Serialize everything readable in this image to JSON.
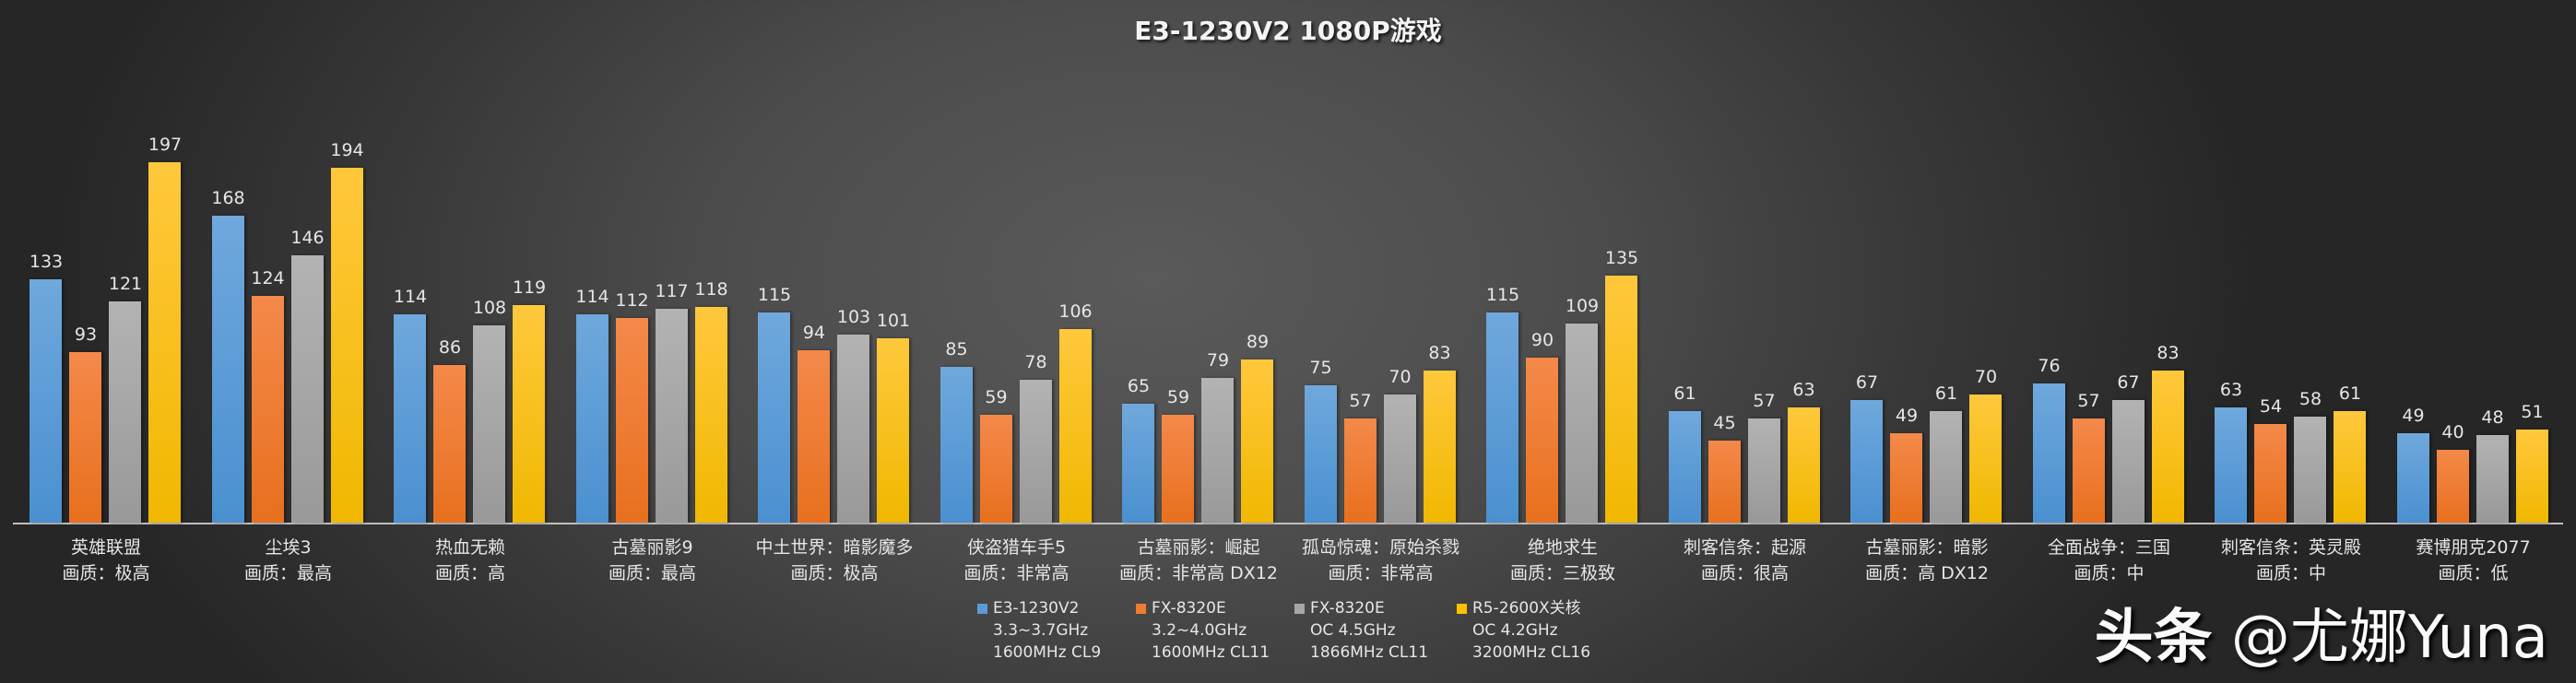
{
  "chart_data": {
    "type": "bar",
    "title": "E3-1230V2  1080P游戏",
    "xlabel": "",
    "ylabel": "",
    "ylim": [
      0,
      200
    ],
    "grid": false,
    "legend_position": "bottom",
    "categories": [
      {
        "game": "英雄联盟",
        "quality": "画质：极高"
      },
      {
        "game": "尘埃3",
        "quality": "画质：最高"
      },
      {
        "game": "热血无赖",
        "quality": "画质：高"
      },
      {
        "game": "古墓丽影9",
        "quality": "画质：最高"
      },
      {
        "game": "中土世界：暗影魔多",
        "quality": "画质：极高"
      },
      {
        "game": "侠盗猎车手5",
        "quality": "画质：非常高"
      },
      {
        "game": "古墓丽影：崛起",
        "quality": "画质：非常高 DX12"
      },
      {
        "game": "孤岛惊魂：原始杀戮",
        "quality": "画质：非常高"
      },
      {
        "game": "绝地求生",
        "quality": "画质：三极致"
      },
      {
        "game": "刺客信条：起源",
        "quality": "画质：很高"
      },
      {
        "game": "古墓丽影：暗影",
        "quality": "画质：高 DX12"
      },
      {
        "game": "全面战争：三国",
        "quality": "画质：中"
      },
      {
        "game": "刺客信条：英灵殿",
        "quality": "画质：中"
      },
      {
        "game": "赛博朋克2077",
        "quality": "画质：低"
      }
    ],
    "series": [
      {
        "name": "E3-1230V2",
        "details": [
          "3.3~3.7GHz",
          "1600MHz CL9"
        ],
        "color": "#5b9bd5",
        "values": [
          133,
          168,
          114,
          114,
          115,
          85,
          65,
          75,
          115,
          61,
          67,
          76,
          63,
          49
        ]
      },
      {
        "name": "FX-8320E",
        "details": [
          "3.2~4.0GHz",
          "1600MHz CL11"
        ],
        "color": "#ed7d31",
        "values": [
          93,
          124,
          86,
          112,
          94,
          59,
          59,
          57,
          90,
          45,
          49,
          57,
          54,
          40
        ]
      },
      {
        "name": "FX-8320E",
        "details": [
          "OC 4.5GHz",
          "1866MHz CL11"
        ],
        "color": "#a5a5a5",
        "values": [
          121,
          146,
          108,
          117,
          103,
          78,
          79,
          70,
          109,
          57,
          61,
          67,
          58,
          48
        ]
      },
      {
        "name": "R5-2600X关核",
        "details": [
          "OC 4.2GHz",
          "3200MHz CL16"
        ],
        "color": "#ffc000",
        "values": [
          197,
          194,
          119,
          118,
          101,
          106,
          89,
          83,
          135,
          63,
          70,
          83,
          61,
          51
        ]
      }
    ]
  },
  "watermark": {
    "platform": "头条",
    "handle": "@尤娜Yuna"
  }
}
